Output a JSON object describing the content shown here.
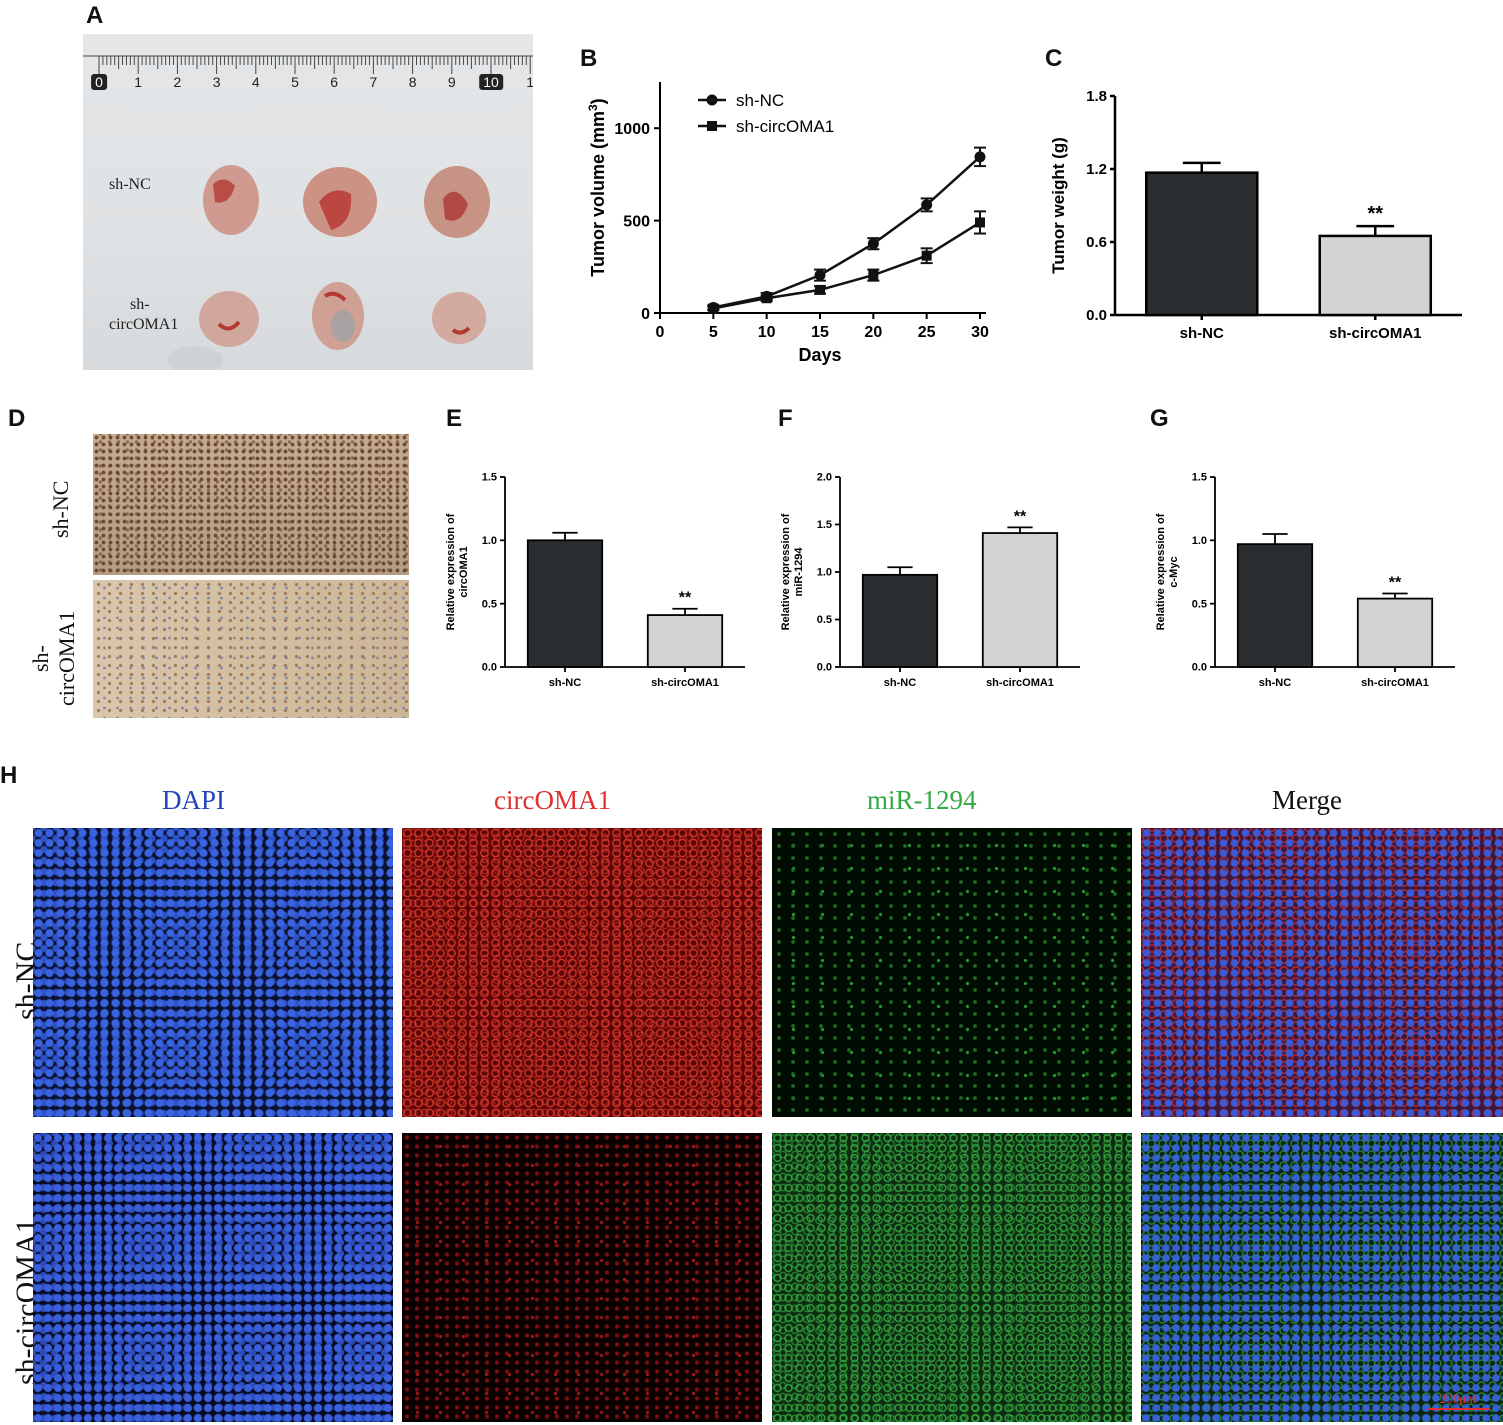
{
  "panel_letters": {
    "A": "A",
    "B": "B",
    "C": "C",
    "D": "D",
    "E": "E",
    "F": "F",
    "G": "G",
    "H": "H"
  },
  "panel_A": {
    "ruler_numbers": [
      "0",
      "1",
      "2",
      "3",
      "4",
      "5",
      "6",
      "7",
      "8",
      "9",
      "10",
      "1"
    ],
    "row_labels": [
      "sh-NC",
      "sh-\ncircOMA1"
    ],
    "row_label_line1": "sh-NC",
    "row_label_line2a": "sh-",
    "row_label_line2b": "circOMA1",
    "colors": {
      "background": "#e6e8ea",
      "tumor": "#c98b82",
      "tumor_dark": "#b0302c"
    }
  },
  "panel_D": {
    "row_label_top": "sh-NC",
    "row_label_bottom_a": "sh-",
    "row_label_bottom_b": "circOMA1"
  },
  "panel_H": {
    "columns": [
      "DAPI",
      "circOMA1",
      "miR-1294",
      "Merge"
    ],
    "column_colors": [
      "#2244bb",
      "#e03030",
      "#33aa44",
      "#111111"
    ],
    "rows": [
      "sh-NC",
      "sh-circOMA1"
    ],
    "scale_bar": "200μm"
  },
  "chart_data": [
    {
      "id": "B",
      "type": "line",
      "xlabel": "Days",
      "ylabel": "Tumor volume (mm³)",
      "ylabel_main": "Tumor volume (mm",
      "ylabel_sup": "3",
      "ylabel_end": ")",
      "x": [
        5,
        10,
        15,
        20,
        25,
        30
      ],
      "xticks": [
        "0",
        "5",
        "10",
        "15",
        "20",
        "25",
        "30"
      ],
      "yticks": [
        "0",
        "500",
        "1000"
      ],
      "xlim": [
        0,
        30
      ],
      "ylim": [
        0,
        1250
      ],
      "legend": "top-left",
      "series": [
        {
          "name": "sh-NC",
          "marker": "circle",
          "values": [
            30,
            90,
            205,
            375,
            585,
            845
          ],
          "errors": [
            12,
            18,
            30,
            30,
            35,
            50
          ]
        },
        {
          "name": "sh-circOMA1",
          "marker": "square",
          "values": [
            25,
            80,
            125,
            205,
            310,
            490
          ],
          "errors": [
            10,
            15,
            20,
            30,
            40,
            60
          ]
        }
      ]
    },
    {
      "id": "C",
      "type": "bar",
      "categories": [
        "sh-NC",
        "sh-circOMA1"
      ],
      "values": [
        1.17,
        0.65
      ],
      "errors": [
        0.08,
        0.08
      ],
      "ylabel": "Tumor weight (g)",
      "yticks": [
        "0.0",
        "0.6",
        "1.2",
        "1.8"
      ],
      "ylim": [
        0,
        1.8
      ],
      "annotations": [
        "",
        "**"
      ],
      "colors": [
        "#2a2d30",
        "#d3d3d3"
      ]
    },
    {
      "id": "E",
      "type": "bar",
      "categories": [
        "sh-NC",
        "sh-circOMA1"
      ],
      "values": [
        1.0,
        0.41
      ],
      "errors": [
        0.06,
        0.05
      ],
      "ylabel_line1": "Relative expression of",
      "ylabel_line2": "circOMA1",
      "yticks": [
        "0.0",
        "0.5",
        "1.0",
        "1.5"
      ],
      "ylim": [
        0,
        1.5
      ],
      "annotations": [
        "",
        "**"
      ],
      "colors": [
        "#2a2d30",
        "#d3d3d3"
      ]
    },
    {
      "id": "F",
      "type": "bar",
      "categories": [
        "sh-NC",
        "sh-circOMA1"
      ],
      "values": [
        0.97,
        1.41
      ],
      "errors": [
        0.08,
        0.06
      ],
      "ylabel_line1": "Relative expression of",
      "ylabel_line2": "miR-1294",
      "yticks": [
        "0.0",
        "0.5",
        "1.0",
        "1.5",
        "2.0"
      ],
      "ylim": [
        0,
        2.0
      ],
      "annotations": [
        "",
        "**"
      ],
      "colors": [
        "#2a2d30",
        "#d3d3d3"
      ]
    },
    {
      "id": "G",
      "type": "bar",
      "categories": [
        "sh-NC",
        "sh-circOMA1"
      ],
      "values": [
        0.97,
        0.54
      ],
      "errors": [
        0.08,
        0.04
      ],
      "ylabel_line1": "Relative expression of",
      "ylabel_line2": "c-Myc",
      "yticks": [
        "0.0",
        "0.5",
        "1.0",
        "1.5"
      ],
      "ylim": [
        0,
        1.5
      ],
      "annotations": [
        "",
        "**"
      ],
      "colors": [
        "#2a2d30",
        "#d3d3d3"
      ]
    }
  ]
}
